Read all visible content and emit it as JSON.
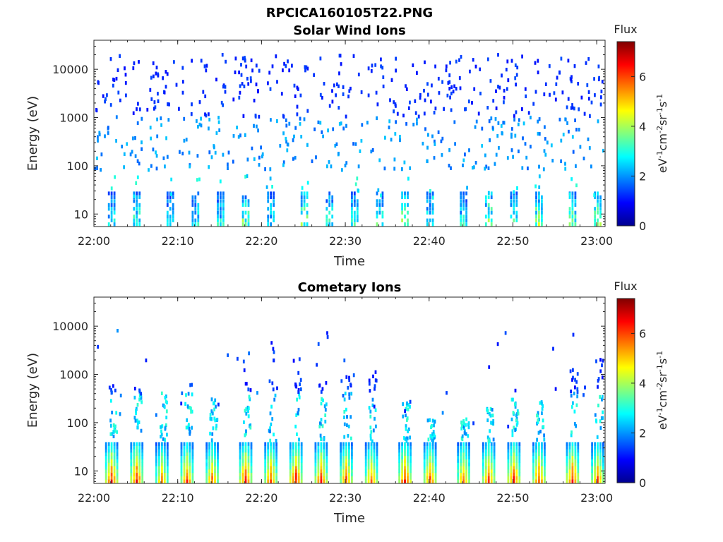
{
  "figure_title": "RPCICA160105T22.PNG",
  "chart_data": [
    {
      "type": "heatmap",
      "title": "Solar Wind Ions",
      "xlabel": "Time",
      "ylabel": "Energy (eV)",
      "x_range": [
        "22:00",
        "23:01"
      ],
      "x_ticks": [
        "22:00",
        "22:10",
        "22:20",
        "22:30",
        "22:40",
        "22:50",
        "23:00"
      ],
      "y_scale": "log",
      "y_range": [
        5.5,
        40000
      ],
      "y_ticks": [
        "10",
        "100",
        "1000",
        "10000"
      ],
      "colorbar": {
        "title": "Flux",
        "label": "eV-1cm-2sr-1s-1",
        "range": [
          0,
          7.4
        ],
        "ticks": [
          "0",
          "2",
          "4",
          "6"
        ]
      },
      "features": {
        "background": "sparse scattered counts (flux about 1-2) across energies 100 eV - 20000 eV",
        "bands": "flux about 2-5 at energies 6-30 eV, strongest near 22:18, 22:25, 22:37, 22:47, 22:53, 23:00"
      },
      "events": [
        {
          "t": "22:02",
          "flux": 3.5
        },
        {
          "t": "22:05",
          "flux": 3.8
        },
        {
          "t": "22:09",
          "flux": 3.2
        },
        {
          "t": "22:12",
          "flux": 3.6
        },
        {
          "t": "22:15",
          "flux": 3.4
        },
        {
          "t": "22:18",
          "flux": 4.4
        },
        {
          "t": "22:21",
          "flux": 3.5
        },
        {
          "t": "22:25",
          "flux": 4.6
        },
        {
          "t": "22:28",
          "flux": 3.7
        },
        {
          "t": "22:31",
          "flux": 3.5
        },
        {
          "t": "22:34",
          "flux": 4.0
        },
        {
          "t": "22:37",
          "flux": 4.5
        },
        {
          "t": "22:40",
          "flux": 3.6
        },
        {
          "t": "22:44",
          "flux": 3.5
        },
        {
          "t": "22:47",
          "flux": 4.6
        },
        {
          "t": "22:50",
          "flux": 3.8
        },
        {
          "t": "22:53",
          "flux": 4.6
        },
        {
          "t": "22:57",
          "flux": 4.2
        },
        {
          "t": "23:00",
          "flux": 4.5
        }
      ]
    },
    {
      "type": "heatmap",
      "title": "Cometary Ions",
      "xlabel": "Time",
      "ylabel": "Energy (eV)",
      "x_range": [
        "22:00",
        "23:01"
      ],
      "x_ticks": [
        "22:00",
        "22:10",
        "22:20",
        "22:30",
        "22:40",
        "22:50",
        "23:00"
      ],
      "y_scale": "log",
      "y_range": [
        5.5,
        40000
      ],
      "y_ticks": [
        "10",
        "100",
        "1000",
        "10000"
      ],
      "colorbar": {
        "title": "Flux",
        "label": "eV-1cm-2sr-1s-1",
        "range": [
          0,
          7.4
        ],
        "ticks": [
          "0",
          "2",
          "4",
          "6"
        ]
      },
      "features": {
        "bands": "periodic high-flux columns (flux about 5-7) at energies 6-40 eV, roughly every 3 minutes",
        "tails": "columns extend upward to 100-3000 eV with flux about 1-3"
      },
      "events": [
        {
          "t": "22:02",
          "flux": 6.8,
          "top_ev": 600
        },
        {
          "t": "22:05",
          "flux": 6.9,
          "top_ev": 500
        },
        {
          "t": "22:08",
          "flux": 5.8,
          "top_ev": 500
        },
        {
          "t": "22:11",
          "flux": 6.4,
          "top_ev": 600
        },
        {
          "t": "22:14",
          "flux": 6.2,
          "top_ev": 300
        },
        {
          "t": "22:18",
          "flux": 6.8,
          "top_ev": 2200
        },
        {
          "t": "22:21",
          "flux": 6.5,
          "top_ev": 5000
        },
        {
          "t": "22:24",
          "flux": 7.0,
          "top_ev": 2500
        },
        {
          "t": "22:27",
          "flux": 6.6,
          "top_ev": 1500
        },
        {
          "t": "22:30",
          "flux": 6.4,
          "top_ev": 900
        },
        {
          "t": "22:33",
          "flux": 6.2,
          "top_ev": 1400
        },
        {
          "t": "22:37",
          "flux": 6.8,
          "top_ev": 300
        },
        {
          "t": "22:40",
          "flux": 6.4,
          "top_ev": 120
        },
        {
          "t": "22:44",
          "flux": 6.2,
          "top_ev": 120
        },
        {
          "t": "22:47",
          "flux": 6.6,
          "top_ev": 200
        },
        {
          "t": "22:50",
          "flux": 6.8,
          "top_ev": 500
        },
        {
          "t": "22:53",
          "flux": 6.6,
          "top_ev": 300
        },
        {
          "t": "22:57",
          "flux": 6.9,
          "top_ev": 1500
        },
        {
          "t": "23:00",
          "flux": 6.4,
          "top_ev": 2000
        }
      ]
    }
  ]
}
